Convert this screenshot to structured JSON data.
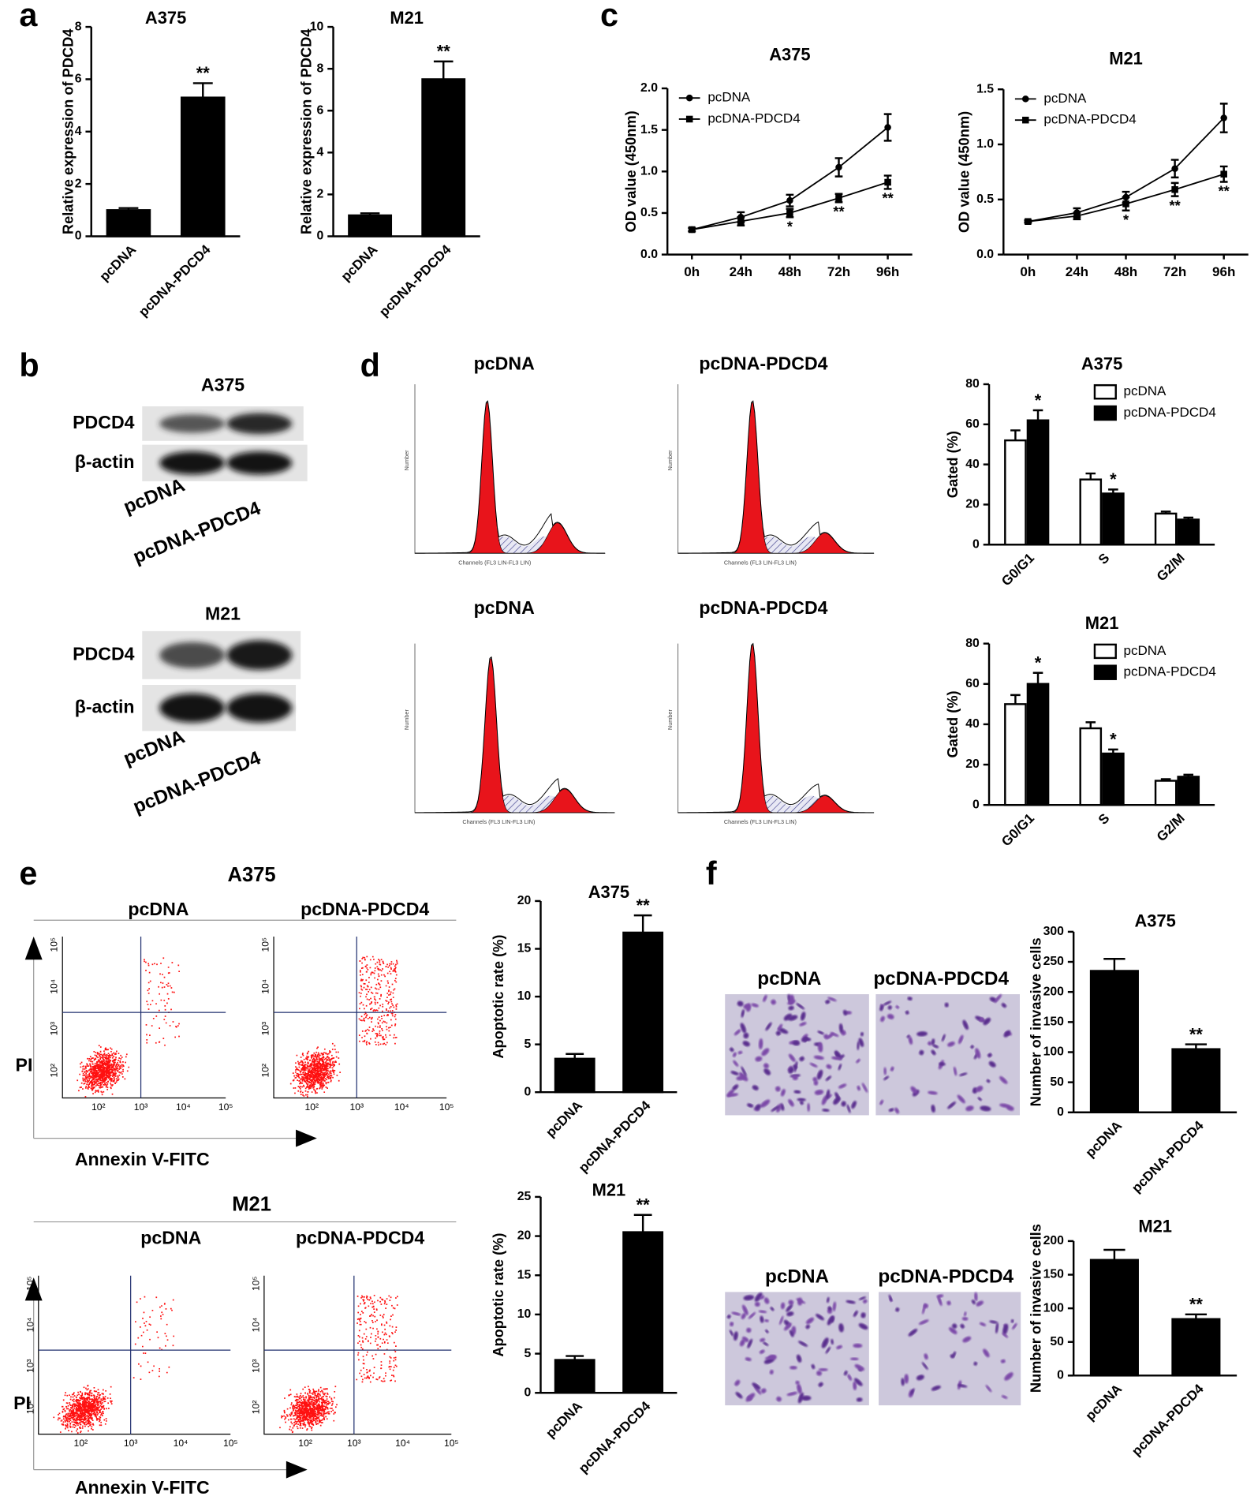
{
  "figure": {
    "panel_labels": [
      "a",
      "b",
      "c",
      "d",
      "e",
      "f"
    ],
    "b": {
      "blots": [
        {
          "title": "A375",
          "rows": [
            "PDCD4",
            "β-actin"
          ],
          "lanes": [
            "pcDNA",
            "pcDNA-PDCD4"
          ]
        },
        {
          "title": "M21",
          "rows": [
            "PDCD4",
            "β-actin"
          ],
          "lanes": [
            "pcDNA",
            "pcDNA-PDCD4"
          ]
        }
      ]
    },
    "d": {
      "histograms": [
        {
          "title": "pcDNA",
          "x_label": "Channels (FL3 LIN-FL3 LIN)",
          "y_label": "Number"
        },
        {
          "title": "pcDNA-PDCD4",
          "x_label": "Channels (FL3 LIN-FL3 LIN)",
          "y_label": "Number"
        },
        {
          "title": "pcDNA",
          "x_label": "Channels (FL3 LIN-FL3 LIN)",
          "y_label": "Number"
        },
        {
          "title": "pcDNA-PDCD4",
          "x_label": "Channels (FL3 LIN-FL3 LIN)",
          "y_label": "Number"
        }
      ]
    },
    "e": {
      "groups": [
        {
          "title": "A375",
          "plots": [
            "pcDNA",
            "pcDNA-PDCD4"
          ],
          "y_label": "PI",
          "x_label": "Annexin V-FITC",
          "tick_labels": [
            "10²",
            "10³",
            "10⁴",
            "10⁵"
          ]
        },
        {
          "title": "M21",
          "plots": [
            "pcDNA",
            "pcDNA-PDCD4"
          ],
          "y_label": "PI",
          "x_label": "Annexin V-FITC",
          "tick_labels": [
            "10²",
            "10³",
            "10⁴",
            "10⁵"
          ]
        }
      ]
    },
    "f": {
      "images": [
        {
          "labels": [
            "pcDNA",
            "pcDNA-PDCD4"
          ]
        },
        {
          "labels": [
            "pcDNA",
            "pcDNA-PDCD4"
          ]
        }
      ]
    }
  },
  "chart_data": [
    {
      "type": "bar",
      "title": "A375",
      "y_label": "Relative expression of PDCD4",
      "categories": [
        "pcDNA",
        "pcDNA-PDCD4"
      ],
      "values": [
        1.0,
        5.3
      ],
      "errors": [
        0.08,
        0.55
      ],
      "value_annotations": [
        null,
        "**"
      ],
      "color": "#000000",
      "ylim": [
        0,
        8
      ],
      "yticks": [
        0,
        2,
        4,
        6,
        8
      ]
    },
    {
      "type": "bar",
      "title": "M21",
      "y_label": "Relative expression of PDCD4",
      "categories": [
        "pcDNA",
        "pcDNA-PDCD4"
      ],
      "values": [
        1.0,
        7.5
      ],
      "errors": [
        0.1,
        0.85
      ],
      "value_annotations": [
        null,
        "**"
      ],
      "color": "#000000",
      "ylim": [
        0,
        10
      ],
      "yticks": [
        0,
        2,
        4,
        6,
        8,
        10
      ]
    },
    {
      "type": "line",
      "title": "A375",
      "y_label": "OD value (450nm)",
      "categories": [
        "0h",
        "24h",
        "48h",
        "72h",
        "96h"
      ],
      "legend": "upper left",
      "series": [
        {
          "name": "pcDNA",
          "color": "#000000",
          "marker": "circle",
          "values": [
            0.3,
            0.45,
            0.65,
            1.05,
            1.53
          ],
          "errors": [
            0.02,
            0.06,
            0.07,
            0.11,
            0.16
          ]
        },
        {
          "name": "pcDNA-PDCD4",
          "color": "#000000",
          "marker": "square",
          "values": [
            0.3,
            0.4,
            0.5,
            0.68,
            0.87
          ],
          "errors": [
            0.02,
            0.05,
            0.05,
            0.05,
            0.08
          ],
          "annotations": [
            null,
            null,
            "*",
            "**",
            "**"
          ]
        }
      ],
      "ylim": [
        0,
        2
      ],
      "yticks": [
        {
          "value": 0,
          "label": "0.0"
        },
        0.5,
        {
          "value": 1,
          "label": "1.0"
        },
        1.5,
        {
          "value": 2,
          "label": "2.0"
        }
      ]
    },
    {
      "type": "line",
      "title": "M21",
      "y_label": "OD value (450nm)",
      "categories": [
        "0h",
        "24h",
        "48h",
        "72h",
        "96h"
      ],
      "legend": "upper left",
      "series": [
        {
          "name": "pcDNA",
          "color": "#000000",
          "marker": "circle",
          "values": [
            0.3,
            0.38,
            0.52,
            0.78,
            1.24
          ],
          "errors": [
            0.01,
            0.04,
            0.05,
            0.08,
            0.13
          ]
        },
        {
          "name": "pcDNA-PDCD4",
          "color": "#000000",
          "marker": "square",
          "values": [
            0.3,
            0.35,
            0.46,
            0.59,
            0.73
          ],
          "errors": [
            0.01,
            0.03,
            0.06,
            0.06,
            0.07
          ],
          "annotations": [
            null,
            null,
            "*",
            "**",
            "**"
          ]
        }
      ],
      "ylim": [
        0,
        1.5
      ],
      "yticks": [
        {
          "value": 0,
          "label": "0.0"
        },
        0.5,
        {
          "value": 1,
          "label": "1.0"
        },
        1.5
      ]
    },
    {
      "type": "bar",
      "title": "A375",
      "y_label": "Gated (%)",
      "categories": [
        "G0/G1",
        "S",
        "G2/M"
      ],
      "legend": "upper right",
      "series": [
        {
          "name": "pcDNA",
          "color": "#ffffff",
          "values": [
            52,
            32.5,
            15.5
          ],
          "errors": [
            5,
            3,
            1
          ]
        },
        {
          "name": "pcDNA-PDCD4",
          "color": "#000000",
          "values": [
            62,
            25.5,
            12.5
          ],
          "errors": [
            5,
            2,
            1
          ],
          "annotations": [
            "*",
            "*",
            null
          ]
        }
      ],
      "ylim": [
        0,
        80
      ],
      "yticks": [
        0,
        20,
        40,
        60,
        80
      ]
    },
    {
      "type": "bar",
      "title": "M21",
      "y_label": "Gated (%)",
      "categories": [
        "G0/G1",
        "S",
        "G2/M"
      ],
      "legend": "upper right",
      "series": [
        {
          "name": "pcDNA",
          "color": "#ffffff",
          "values": [
            50,
            38,
            12
          ],
          "errors": [
            4.5,
            3,
            0.8
          ]
        },
        {
          "name": "pcDNA-PDCD4",
          "color": "#000000",
          "values": [
            60,
            25.5,
            14
          ],
          "errors": [
            5.5,
            2,
            1
          ],
          "annotations": [
            "*",
            "*",
            null
          ]
        }
      ],
      "ylim": [
        0,
        80
      ],
      "yticks": [
        0,
        20,
        40,
        60,
        80
      ]
    },
    {
      "type": "bar",
      "title": "A375",
      "y_label": "Apoptotic rate (%)",
      "categories": [
        "pcDNA",
        "pcDNA-PDCD4"
      ],
      "values": [
        3.5,
        16.7
      ],
      "errors": [
        0.5,
        1.8
      ],
      "value_annotations": [
        null,
        "**"
      ],
      "color": "#000000",
      "ylim": [
        0,
        20
      ],
      "yticks": [
        0,
        5,
        10,
        15,
        20
      ]
    },
    {
      "type": "bar",
      "title": "M21",
      "y_label": "Apoptotic rate (%)",
      "categories": [
        "pcDNA",
        "pcDNA-PDCD4"
      ],
      "values": [
        4.2,
        20.5
      ],
      "errors": [
        0.5,
        2.2
      ],
      "value_annotations": [
        null,
        "**"
      ],
      "color": "#000000",
      "ylim": [
        0,
        25
      ],
      "yticks": [
        0,
        5,
        10,
        15,
        20,
        25
      ]
    },
    {
      "type": "bar",
      "title": "A375",
      "y_label": "Number of invasive cells",
      "categories": [
        "pcDNA",
        "pcDNA-PDCD4"
      ],
      "values": [
        235,
        105
      ],
      "errors": [
        20,
        8
      ],
      "value_annotations": [
        null,
        "**"
      ],
      "color": "#000000",
      "ylim": [
        0,
        300
      ],
      "yticks": [
        0,
        50,
        100,
        150,
        200,
        250,
        300
      ]
    },
    {
      "type": "bar",
      "title": "M21",
      "y_label": "Number of invasive cells",
      "categories": [
        "pcDNA",
        "pcDNA-PDCD4"
      ],
      "values": [
        172,
        84
      ],
      "errors": [
        15,
        7
      ],
      "value_annotations": [
        null,
        "**"
      ],
      "color": "#000000",
      "ylim": [
        0,
        200
      ],
      "yticks": [
        0,
        50,
        100,
        150,
        200
      ]
    }
  ]
}
